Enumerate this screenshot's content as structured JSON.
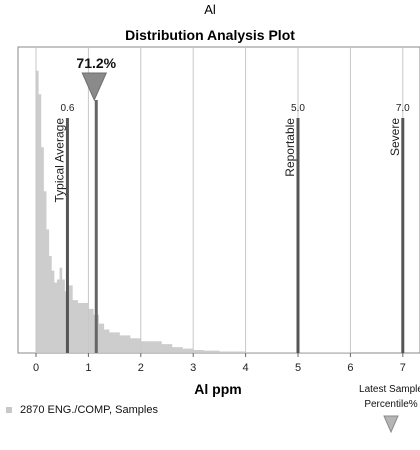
{
  "page": {
    "legend_label": "2870 ENG./COMP, Samples",
    "latest_sample_label": "Latest Sample",
    "percentile_label": "Percentile%"
  },
  "chart_data": {
    "type": "area",
    "element_title": "Al",
    "title": "Distribution Analysis Plot",
    "xlabel": "Al ppm",
    "ylabel": "",
    "xlim": [
      -0.35,
      7.4
    ],
    "x_ticks": [
      0,
      1,
      2,
      3,
      4,
      5,
      6,
      7
    ],
    "grid": true,
    "legend_position": "bottom-left",
    "series": [
      {
        "name": "2870 ENG./COMP, Samples",
        "color": "#c8c8c8",
        "x": [
          -0.05,
          0.0,
          0.05,
          0.1,
          0.15,
          0.2,
          0.25,
          0.3,
          0.35,
          0.4,
          0.45,
          0.5,
          0.55,
          0.6,
          0.7,
          0.8,
          0.9,
          1.0,
          1.1,
          1.2,
          1.3,
          1.4,
          1.6,
          1.8,
          2.0,
          2.2,
          2.4,
          2.6,
          2.8,
          3.0,
          3.2,
          3.5,
          4.0,
          5.0,
          6.0,
          7.0,
          7.4
        ],
        "density": [
          0.0,
          0.96,
          0.88,
          0.7,
          0.55,
          0.42,
          0.33,
          0.28,
          0.24,
          0.25,
          0.29,
          0.25,
          0.21,
          0.23,
          0.18,
          0.17,
          0.17,
          0.15,
          0.13,
          0.1,
          0.08,
          0.07,
          0.06,
          0.05,
          0.04,
          0.04,
          0.03,
          0.02,
          0.015,
          0.01,
          0.008,
          0.005,
          0.003,
          0.001,
          0.0,
          0.0,
          0.0
        ]
      }
    ],
    "reference_lines": [
      {
        "label": "Typical Average",
        "value": 0.6,
        "value_label": "0.6"
      },
      {
        "label": "Reportable",
        "value": 5.0,
        "value_label": "5.0"
      },
      {
        "label": "Severe",
        "value": 7.0,
        "value_label": "7.0"
      }
    ],
    "marker": {
      "label": "71.2%",
      "value": 1.15,
      "color": "#8a8a8a"
    }
  }
}
